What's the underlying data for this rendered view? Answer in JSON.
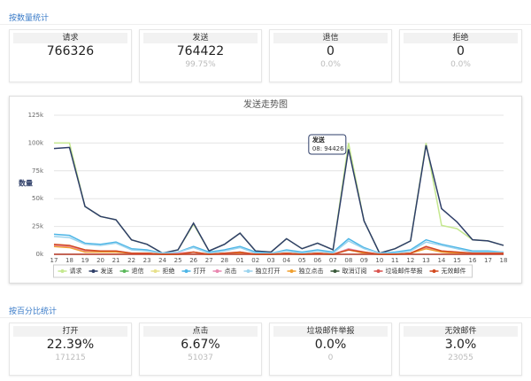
{
  "count_section": {
    "title": "按数量统计",
    "cards": [
      {
        "label": "请求",
        "main": 766326
      },
      {
        "label": "发送",
        "main": 764422,
        "sub": "99.75%"
      },
      {
        "label": "退信",
        "main": 0,
        "sub": "0.0%"
      },
      {
        "label": "拒绝",
        "main": 0,
        "sub": "0.0%"
      }
    ]
  },
  "chart_data": {
    "type": "line",
    "title": "发送走势图",
    "y_label": "数量",
    "categories": [
      "17",
      "18",
      "19",
      "20",
      "21",
      "22",
      "23",
      "24",
      "25",
      "26",
      "27",
      "28",
      "01",
      "02",
      "03",
      "04",
      "05",
      "06",
      "07",
      "08",
      "09",
      "10",
      "11",
      "12",
      "13",
      "14",
      "15",
      "16",
      "17",
      "18"
    ],
    "ylim": [
      0,
      125000
    ],
    "yticks": [
      {
        "value": 0,
        "label": "0k"
      },
      {
        "value": 25000,
        "label": "25k"
      },
      {
        "value": 50000,
        "label": "50k"
      },
      {
        "value": 75000,
        "label": "75k"
      },
      {
        "value": 100000,
        "label": "100k"
      },
      {
        "value": 125000,
        "label": "125k"
      }
    ],
    "grid": true,
    "series": [
      {
        "name": "请求",
        "color": "#c5e88f",
        "values": [
          100000,
          100000,
          43000,
          34000,
          31000,
          13000,
          9000,
          1000,
          4000,
          27000,
          3000,
          9000,
          19000,
          3000,
          2000,
          14000,
          5000,
          10000,
          4000,
          100000,
          30000,
          1000,
          5000,
          12000,
          100000,
          26000,
          23000,
          13000,
          12000,
          8000
        ]
      },
      {
        "name": "发送",
        "color": "#2e3e68",
        "values": [
          95000,
          96000,
          43000,
          34000,
          31000,
          13000,
          9000,
          1000,
          4000,
          28000,
          3000,
          9000,
          19000,
          3000,
          2000,
          14000,
          5000,
          10000,
          4000,
          94426,
          30000,
          1000,
          5000,
          12000,
          98000,
          41000,
          29000,
          13000,
          12000,
          8000
        ]
      },
      {
        "name": "退信",
        "color": "#5cb85c",
        "values": [
          0,
          0,
          0,
          0,
          0,
          0,
          0,
          0,
          0,
          0,
          0,
          0,
          0,
          0,
          0,
          0,
          0,
          0,
          0,
          0,
          0,
          0,
          0,
          0,
          0,
          0,
          0,
          0,
          0,
          0
        ]
      },
      {
        "name": "拒绝",
        "color": "#e7e08a",
        "values": [
          0,
          0,
          0,
          0,
          0,
          0,
          0,
          0,
          0,
          0,
          0,
          0,
          0,
          0,
          0,
          0,
          0,
          0,
          0,
          0,
          0,
          0,
          0,
          0,
          0,
          0,
          0,
          0,
          0,
          0
        ]
      },
      {
        "name": "打开",
        "color": "#4cb5e6",
        "values": [
          18000,
          17000,
          10000,
          9000,
          11000,
          5000,
          4000,
          1000,
          2000,
          7000,
          2000,
          4000,
          7000,
          2000,
          1000,
          4000,
          2000,
          4000,
          2000,
          14000,
          6000,
          1000,
          2000,
          4000,
          13000,
          9000,
          6000,
          3000,
          3000,
          2000
        ]
      },
      {
        "name": "点击",
        "color": "#e987b0",
        "values": [
          8000,
          7000,
          3000,
          3000,
          3000,
          1000,
          1000,
          0,
          1000,
          2000,
          0,
          1000,
          2000,
          0,
          0,
          1000,
          0,
          1000,
          0,
          5000,
          2000,
          0,
          0,
          1000,
          6000,
          3000,
          2000,
          1000,
          1000,
          1000
        ]
      },
      {
        "name": "独立打开",
        "color": "#9ad3ee",
        "values": [
          16000,
          15000,
          9000,
          8000,
          10000,
          4000,
          3000,
          1000,
          2000,
          6000,
          1000,
          3000,
          6000,
          1000,
          1000,
          3000,
          1000,
          3000,
          1000,
          12000,
          5000,
          1000,
          1000,
          3000,
          11000,
          8000,
          5000,
          2000,
          2000,
          2000
        ]
      },
      {
        "name": "独立点击",
        "color": "#f0a030",
        "values": [
          7000,
          6000,
          2000,
          2000,
          2000,
          1000,
          1000,
          0,
          0,
          2000,
          0,
          1000,
          1000,
          0,
          0,
          1000,
          0,
          1000,
          0,
          4000,
          1000,
          0,
          0,
          1000,
          5000,
          2000,
          1000,
          1000,
          1000,
          0
        ]
      },
      {
        "name": "取消订阅",
        "color": "#3a5a3a",
        "values": [
          0,
          0,
          0,
          0,
          0,
          0,
          0,
          0,
          0,
          0,
          0,
          0,
          0,
          0,
          0,
          0,
          0,
          0,
          0,
          0,
          0,
          0,
          0,
          0,
          0,
          0,
          0,
          0,
          0,
          0
        ]
      },
      {
        "name": "垃圾邮件举报",
        "color": "#d9534f",
        "values": [
          0,
          0,
          0,
          0,
          0,
          0,
          0,
          0,
          0,
          0,
          0,
          0,
          0,
          0,
          0,
          0,
          0,
          0,
          0,
          0,
          0,
          0,
          0,
          0,
          0,
          0,
          0,
          0,
          0,
          0
        ]
      },
      {
        "name": "无效邮件",
        "color": "#d2491e",
        "values": [
          9000,
          8000,
          4000,
          3000,
          3000,
          1000,
          1000,
          0,
          0,
          2000,
          0,
          1000,
          2000,
          0,
          0,
          1000,
          0,
          1000,
          0,
          4000,
          2000,
          0,
          0,
          1000,
          7000,
          3000,
          2000,
          1000,
          1000,
          1000
        ]
      }
    ],
    "tooltip": {
      "title": "发送",
      "text": "08: 94426"
    }
  },
  "percent_section": {
    "title": "按百分比统计",
    "cards": [
      {
        "label": "打开",
        "main": "22.39%",
        "sub": 171215
      },
      {
        "label": "点击",
        "main": "6.67%",
        "sub": 51037
      },
      {
        "label": "垃圾邮件举报",
        "main": "0.0%",
        "sub": 0
      },
      {
        "label": "无效邮件",
        "main": "3.0%",
        "sub": 23055
      }
    ]
  }
}
